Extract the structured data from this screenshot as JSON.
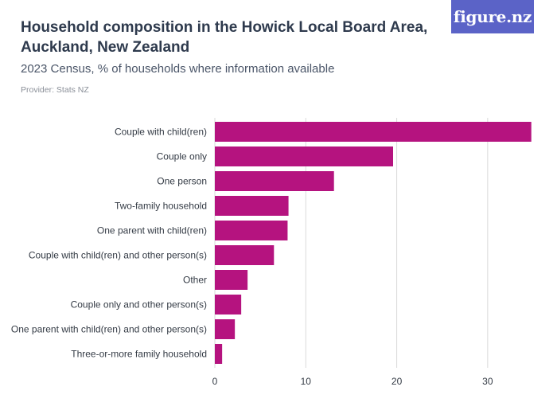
{
  "header": {
    "title": "Household composition in the Howick Local Board Area, Auckland, New Zealand",
    "subtitle": "2023 Census, % of households where information available",
    "provider": "Provider: Stats NZ",
    "logo_text": "figure.nz"
  },
  "colors": {
    "bar": "#b5137f",
    "grid": "#d9d9d9",
    "logo_bg": "#5b63c7"
  },
  "chart_data": {
    "type": "bar",
    "orientation": "horizontal",
    "title": "Household composition in the Howick Local Board Area, Auckland, New Zealand",
    "subtitle": "2023 Census, % of households where information available",
    "categories": [
      "Couple with child(ren)",
      "Couple only",
      "One person",
      "Two-family household",
      "One parent with child(ren)",
      "Couple with child(ren) and other person(s)",
      "Other",
      "Couple only and other person(s)",
      "One parent with child(ren) and other person(s)",
      "Three-or-more family household"
    ],
    "values": [
      34.8,
      19.6,
      13.1,
      8.1,
      8.0,
      6.5,
      3.6,
      2.9,
      2.2,
      0.8
    ],
    "xlim": [
      0,
      35
    ],
    "xticks": [
      0,
      10,
      20,
      30
    ],
    "grid": true,
    "xlabel": "",
    "ylabel": ""
  }
}
